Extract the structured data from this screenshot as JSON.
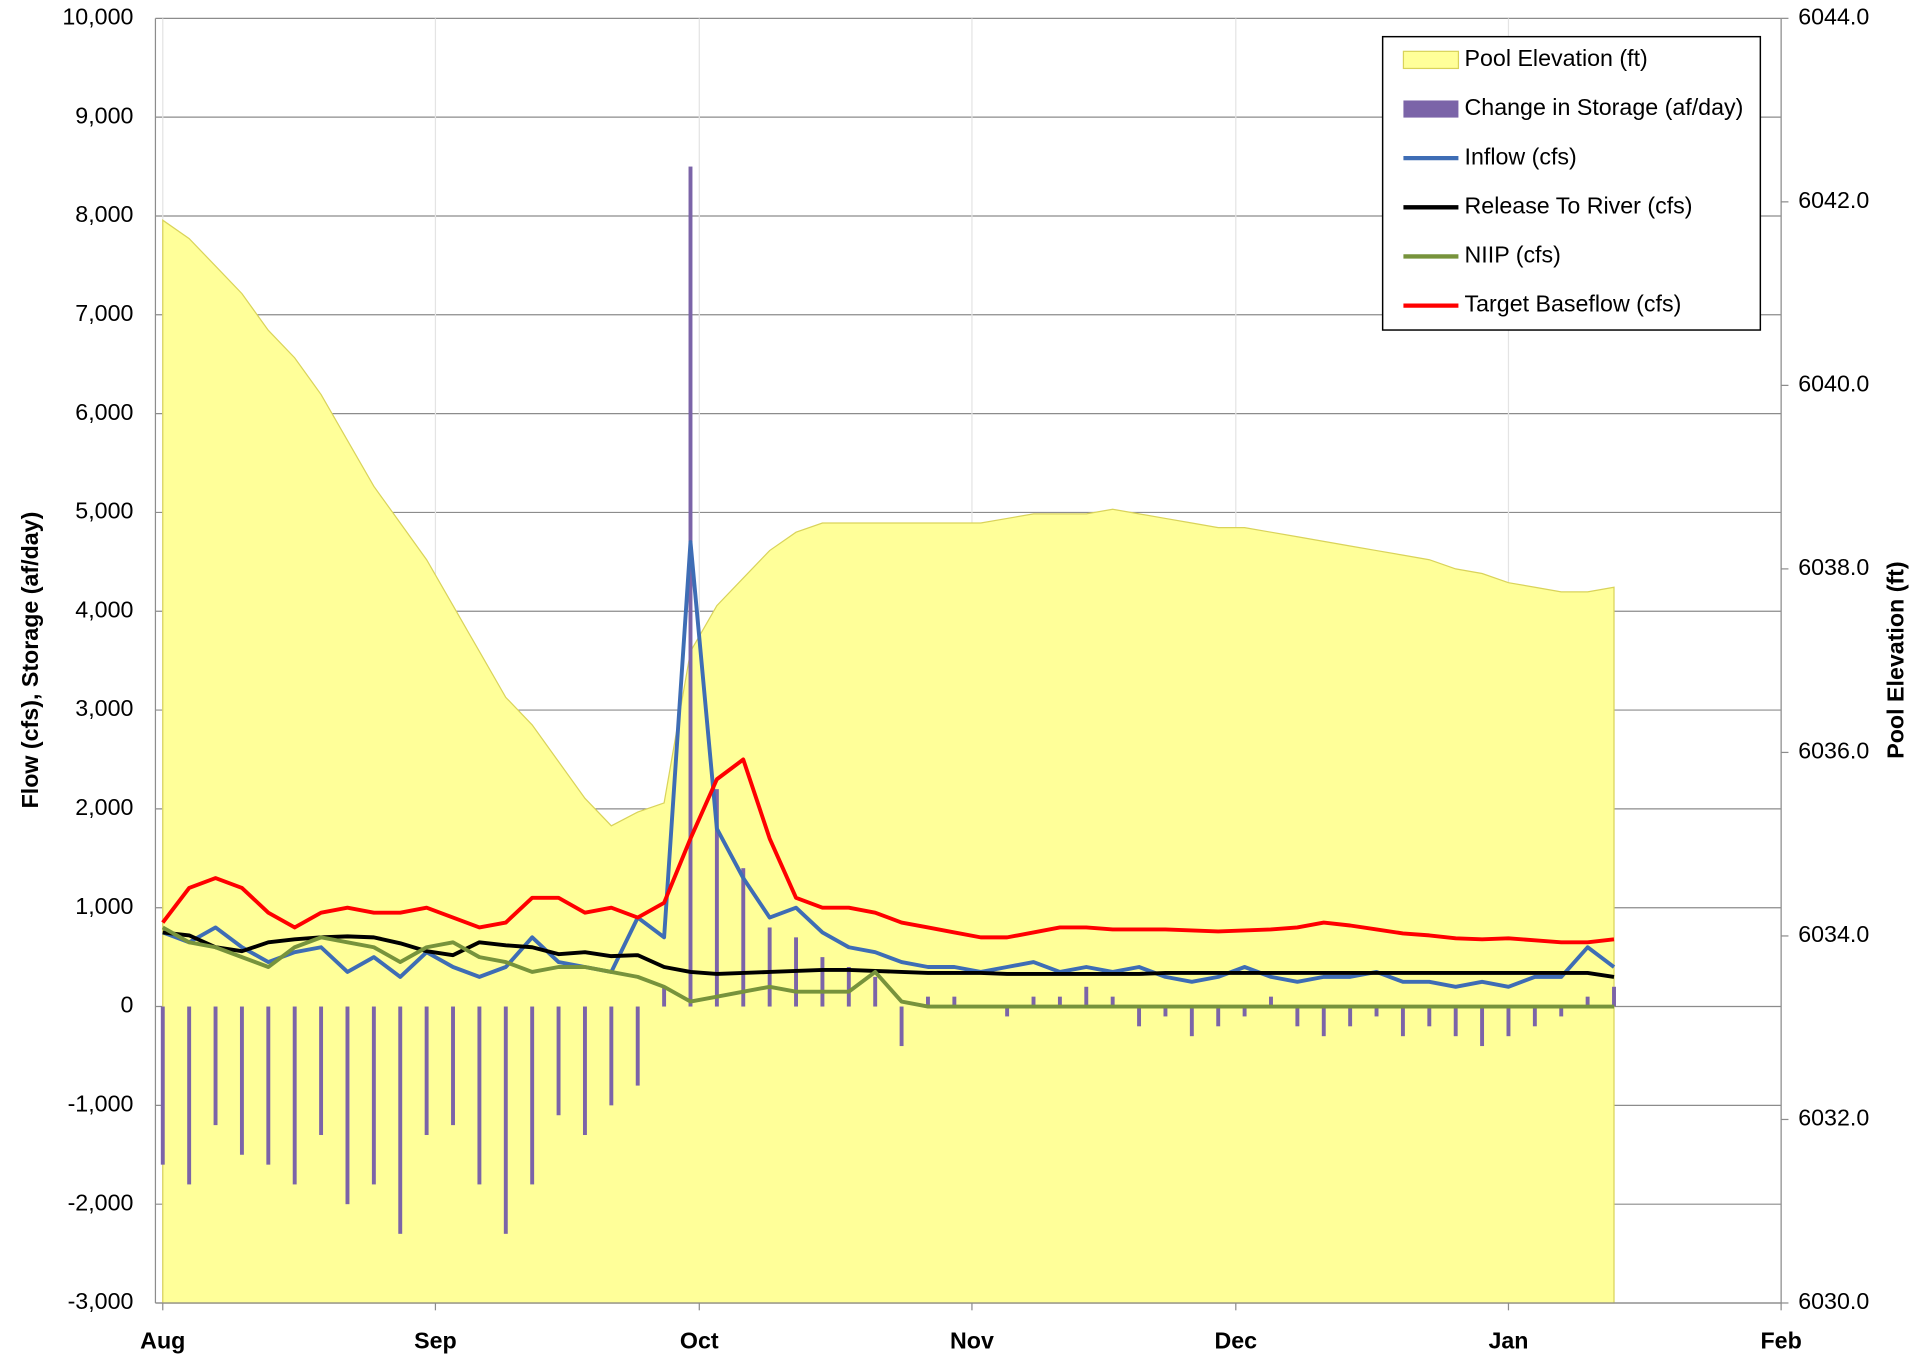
{
  "chart_data": {
    "type": "combo",
    "y_label": "Flow (cfs), Storage (af/day)",
    "y2_label": "Pool Elevation (ft)",
    "xlim": [
      0,
      184
    ],
    "xticks": [
      {
        "value": 0,
        "label": "Aug"
      },
      {
        "value": 31,
        "label": "Sep"
      },
      {
        "value": 61,
        "label": "Oct"
      },
      {
        "value": 92,
        "label": "Nov"
      },
      {
        "value": 122,
        "label": "Dec"
      },
      {
        "value": 153,
        "label": "Jan"
      },
      {
        "value": 184,
        "label": "Feb"
      }
    ],
    "ylim": [
      -3000,
      10000
    ],
    "yticks": [
      {
        "value": -3000,
        "label": "-3,000"
      },
      {
        "value": -2000,
        "label": "-2,000"
      },
      {
        "value": -1000,
        "label": "-1,000"
      },
      0,
      {
        "value": 1000,
        "label": "1,000"
      },
      {
        "value": 2000,
        "label": "2,000"
      },
      {
        "value": 3000,
        "label": "3,000"
      },
      {
        "value": 4000,
        "label": "4,000"
      },
      {
        "value": 5000,
        "label": "5,000"
      },
      {
        "value": 6000,
        "label": "6,000"
      },
      {
        "value": 7000,
        "label": "7,000"
      },
      {
        "value": 8000,
        "label": "8,000"
      },
      {
        "value": 9000,
        "label": "9,000"
      },
      {
        "value": 10000,
        "label": "10,000"
      }
    ],
    "y2lim": [
      6030,
      6044
    ],
    "y2ticks": [
      {
        "value": 6030,
        "label": "6030.0"
      },
      {
        "value": 6032,
        "label": "6032.0"
      },
      {
        "value": 6034,
        "label": "6034.0"
      },
      {
        "value": 6036,
        "label": "6036.0"
      },
      {
        "value": 6038,
        "label": "6038.0"
      },
      {
        "value": 6040,
        "label": "6040.0"
      },
      {
        "value": 6042,
        "label": "6042.0"
      },
      {
        "value": 6044,
        "label": "6044.0"
      }
    ],
    "grid": true,
    "legend": "top-right",
    "x": [
      0,
      3,
      6,
      9,
      12,
      15,
      18,
      21,
      24,
      27,
      30,
      33,
      36,
      39,
      42,
      45,
      48,
      51,
      54,
      57,
      60,
      63,
      66,
      69,
      72,
      75,
      78,
      81,
      84,
      87,
      90,
      93,
      96,
      99,
      102,
      105,
      108,
      111,
      114,
      117,
      120,
      123,
      126,
      129,
      132,
      135,
      138,
      141,
      144,
      147,
      150,
      153,
      156,
      159,
      162,
      165
    ],
    "series": [
      {
        "name": "Pool Elevation (ft)",
        "type": "area",
        "axis": "y2",
        "color": "#ffff99",
        "values": [
          6041.8,
          6041.6,
          6041.3,
          6041.0,
          6040.6,
          6040.3,
          6039.9,
          6039.4,
          6038.9,
          6038.5,
          6038.1,
          6037.6,
          6037.1,
          6036.6,
          6036.3,
          6035.9,
          6035.5,
          6035.2,
          6035.35,
          6035.45,
          6037.1,
          6037.6,
          6037.9,
          6038.2,
          6038.4,
          6038.5,
          6038.5,
          6038.5,
          6038.5,
          6038.5,
          6038.5,
          6038.5,
          6038.55,
          6038.6,
          6038.6,
          6038.6,
          6038.65,
          6038.6,
          6038.55,
          6038.5,
          6038.45,
          6038.45,
          6038.4,
          6038.35,
          6038.3,
          6038.25,
          6038.2,
          6038.15,
          6038.1,
          6038.0,
          6037.95,
          6037.85,
          6037.8,
          6037.75,
          6037.75,
          6037.8
        ]
      },
      {
        "name": "Change in Storage (af/day)",
        "type": "bar",
        "color": "#7b64a8",
        "values": [
          -1600,
          -1800,
          -1200,
          -1500,
          -1600,
          -1800,
          -1300,
          -2000,
          -1800,
          -2300,
          -1300,
          -1200,
          -1800,
          -2300,
          -1800,
          -1100,
          -1300,
          -1000,
          -800,
          200,
          8500,
          2200,
          1400,
          800,
          700,
          500,
          400,
          300,
          -400,
          100,
          100,
          0,
          -100,
          100,
          100,
          200,
          100,
          -200,
          -100,
          -300,
          -200,
          -100,
          100,
          -200,
          -300,
          -200,
          -100,
          -300,
          -200,
          -300,
          -400,
          -300,
          -200,
          -100,
          100,
          200
        ]
      },
      {
        "name": "Inflow (cfs)",
        "type": "line",
        "color": "#3e6db5",
        "values": [
          750,
          650,
          800,
          600,
          450,
          550,
          600,
          350,
          500,
          300,
          550,
          400,
          300,
          400,
          700,
          450,
          400,
          350,
          900,
          700,
          4700,
          1800,
          1300,
          900,
          1000,
          750,
          600,
          550,
          450,
          400,
          400,
          350,
          400,
          450,
          350,
          400,
          350,
          400,
          300,
          250,
          300,
          400,
          300,
          250,
          300,
          300,
          350,
          250,
          250,
          200,
          250,
          200,
          300,
          300,
          600,
          400
        ]
      },
      {
        "name": "Release To River (cfs)",
        "type": "line",
        "color": "#000000",
        "values": [
          750,
          720,
          600,
          560,
          650,
          680,
          700,
          710,
          700,
          640,
          560,
          520,
          650,
          620,
          600,
          530,
          550,
          510,
          520,
          400,
          350,
          330,
          340,
          350,
          360,
          370,
          370,
          360,
          350,
          340,
          340,
          340,
          330,
          330,
          330,
          330,
          330,
          330,
          340,
          340,
          340,
          340,
          340,
          340,
          340,
          340,
          340,
          340,
          340,
          340,
          340,
          340,
          340,
          340,
          340,
          300
        ]
      },
      {
        "name": "NIIP (cfs)",
        "type": "line",
        "color": "#77933c",
        "values": [
          800,
          650,
          600,
          500,
          400,
          600,
          700,
          650,
          600,
          450,
          600,
          650,
          500,
          450,
          350,
          400,
          400,
          350,
          300,
          200,
          50,
          100,
          150,
          200,
          150,
          150,
          150,
          350,
          50,
          0,
          0,
          0,
          0,
          0,
          0,
          0,
          0,
          0,
          0,
          0,
          0,
          0,
          0,
          0,
          0,
          0,
          0,
          0,
          0,
          0,
          0,
          0,
          0,
          0,
          0,
          0
        ]
      },
      {
        "name": "Target Baseflow (cfs)",
        "type": "line",
        "color": "#ff0000",
        "values": [
          850,
          1200,
          1300,
          1200,
          950,
          800,
          950,
          1000,
          950,
          950,
          1000,
          900,
          800,
          850,
          1100,
          1100,
          950,
          1000,
          900,
          1050,
          1700,
          2300,
          2500,
          1700,
          1100,
          1000,
          1000,
          950,
          850,
          800,
          750,
          700,
          700,
          750,
          800,
          800,
          780,
          780,
          780,
          770,
          760,
          770,
          780,
          800,
          850,
          820,
          780,
          740,
          720,
          690,
          680,
          690,
          670,
          650,
          650,
          680
        ]
      }
    ]
  }
}
